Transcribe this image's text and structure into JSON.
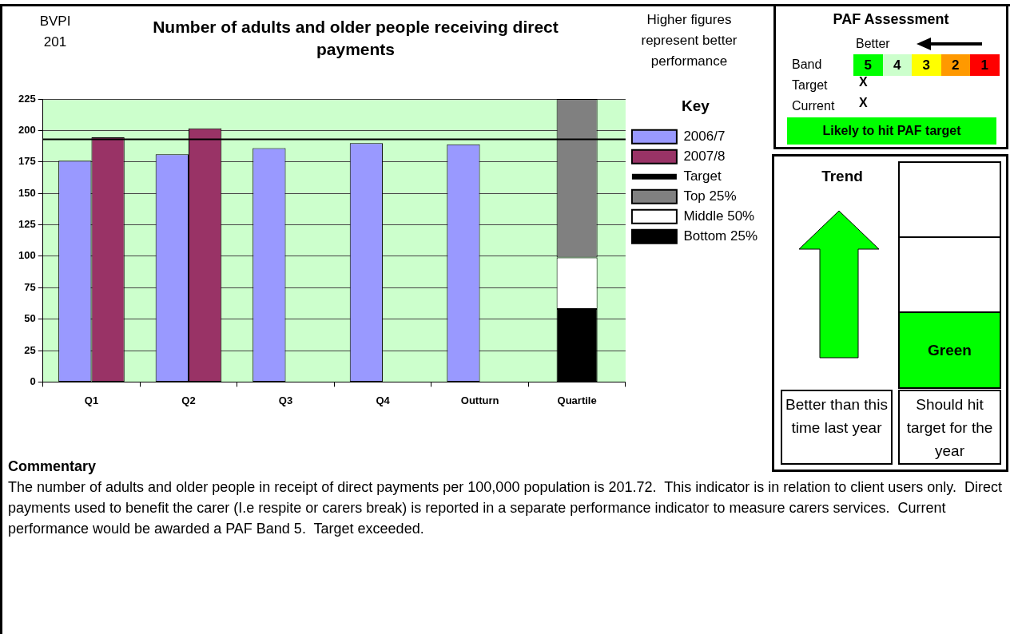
{
  "chart_data": [
    {
      "type": "bar",
      "title": "Number of adults and older people receiving direct payments",
      "categories": [
        "Q1",
        "Q2",
        "Q3",
        "Q4",
        "Outturn",
        "Quartile"
      ],
      "series": [
        {
          "name": "2006/7",
          "color": "#9999ff",
          "values": [
            176,
            181,
            186,
            190,
            189,
            null
          ]
        },
        {
          "name": "2007/8",
          "color": "#993366",
          "values": [
            194.5,
            201.7,
            null,
            null,
            null,
            null
          ]
        },
        {
          "name": "Top 25%",
          "color": "#808080",
          "values": [
            null,
            null,
            null,
            null,
            null,
            126
          ],
          "base": [
            null,
            null,
            null,
            null,
            null,
            99
          ]
        },
        {
          "name": "Middle 50%",
          "color": "#ffffff",
          "values": [
            null,
            null,
            null,
            null,
            null,
            41
          ],
          "base": [
            null,
            null,
            null,
            null,
            null,
            58
          ]
        },
        {
          "name": "Bottom 25%",
          "color": "#000000",
          "values": [
            null,
            null,
            null,
            null,
            null,
            58
          ],
          "base": [
            null,
            null,
            null,
            null,
            null,
            0
          ]
        }
      ],
      "ylim": [
        0,
        225
      ],
      "yticks": [
        0,
        25,
        50,
        75,
        100,
        125,
        150,
        175,
        200,
        225
      ],
      "grid": "y",
      "ref_lines": [
        {
          "axis": "y",
          "value": 193,
          "label": "Target",
          "color": "#000000"
        }
      ],
      "legend": "right",
      "legend_title": "Key",
      "annotations": [
        "BVPI 201",
        "Higher figures represent better performance",
        "Commentary",
        "The number of adults and older people in receipt of direct payments per 100,000 population is 201.72.  This indicator is in relation to client users only.  Direct payments used to benefit the carer (I.e respite or carers break) is reported in a separate performance indicator to measure carers services.  Current performance would be awarded a PAF Band 5.  Target exceeded."
      ]
    },
    {
      "type": "heatmap",
      "title": "PAF Assessment",
      "categories": [
        null,
        null,
        null,
        null,
        null
      ],
      "y_categories": [
        "Band"
      ],
      "cells": [
        [
          5,
          4,
          3,
          2,
          1
        ]
      ],
      "data_labels": true,
      "colors": [
        "#00ff00",
        "#ccffcc",
        "#ffff00",
        "#ff9900",
        "#ff0000"
      ],
      "annotations": [
        "Better",
        "Target",
        "X",
        "Current",
        "X",
        "Likely to hit PAF target"
      ]
    },
    {
      "type": "other",
      "title": "Trend",
      "annotations": [
        "Green",
        "Better than this time last year",
        "Should hit target for the year"
      ]
    }
  ]
}
